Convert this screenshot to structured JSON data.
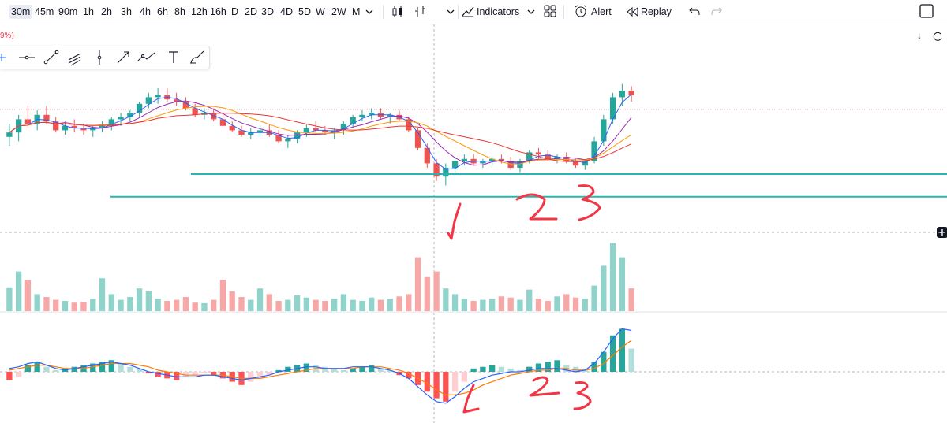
{
  "toolbar": {
    "timeframes": [
      "30m",
      "45m",
      "90m",
      "1h",
      "2h",
      "3h",
      "4h",
      "6h",
      "8h",
      "12h",
      "16h",
      "D",
      "2D",
      "3D",
      "4D",
      "5D",
      "W",
      "2W",
      "M"
    ],
    "selected_timeframe": "30m",
    "indicators_label": "Indicators",
    "alert_label": "Alert",
    "replay_label": "Replay"
  },
  "price_pane": {
    "change_fragment": "9%)"
  },
  "annotations": [
    "1",
    "2",
    "3",
    "1",
    "2",
    "3"
  ],
  "colors": {
    "up": "#26a69a",
    "down": "#ef5350",
    "up_vol": "#8fd3cb",
    "down_vol": "#f6a7a6",
    "support": "#26b5b0",
    "ma1": "#2962ff",
    "ma2": "#9c27b0",
    "ma3": "#ff9800",
    "ma4": "#e53935",
    "macd": "#2962ff",
    "signal": "#ff7a00",
    "hand": "#f23645"
  },
  "chart_data": {
    "type": "candlestick",
    "series_price": [
      [
        24,
        30,
        20,
        26
      ],
      [
        26,
        34,
        22,
        32
      ],
      [
        32,
        38,
        28,
        30
      ],
      [
        30,
        36,
        27,
        34
      ],
      [
        34,
        38,
        30,
        31
      ],
      [
        31,
        33,
        26,
        27
      ],
      [
        27,
        31,
        25,
        29
      ],
      [
        29,
        32,
        26,
        28
      ],
      [
        28,
        30,
        25,
        27
      ],
      [
        27,
        29,
        24,
        28
      ],
      [
        28,
        31,
        26,
        29
      ],
      [
        29,
        33,
        27,
        32
      ],
      [
        32,
        35,
        29,
        33
      ],
      [
        33,
        36,
        31,
        35
      ],
      [
        35,
        40,
        33,
        39
      ],
      [
        39,
        44,
        37,
        42
      ],
      [
        42,
        46,
        39,
        43
      ],
      [
        43,
        46,
        40,
        41
      ],
      [
        41,
        44,
        38,
        40
      ],
      [
        40,
        42,
        36,
        37
      ],
      [
        37,
        39,
        33,
        34
      ],
      [
        34,
        37,
        32,
        35
      ],
      [
        35,
        37,
        31,
        32
      ],
      [
        32,
        34,
        28,
        29
      ],
      [
        29,
        31,
        26,
        27
      ],
      [
        27,
        29,
        24,
        25
      ],
      [
        25,
        28,
        23,
        26
      ],
      [
        26,
        29,
        24,
        27
      ],
      [
        27,
        30,
        24,
        25
      ],
      [
        25,
        27,
        21,
        22
      ],
      [
        22,
        25,
        19,
        23
      ],
      [
        23,
        27,
        21,
        26
      ],
      [
        26,
        30,
        24,
        28
      ],
      [
        28,
        31,
        26,
        27
      ],
      [
        27,
        29,
        25,
        26
      ],
      [
        26,
        28,
        23,
        27
      ],
      [
        27,
        31,
        25,
        30
      ],
      [
        30,
        34,
        28,
        33
      ],
      [
        33,
        36,
        31,
        34
      ],
      [
        34,
        37,
        32,
        35
      ],
      [
        35,
        37,
        32,
        33
      ],
      [
        33,
        35,
        30,
        34
      ],
      [
        34,
        36,
        31,
        32
      ],
      [
        32,
        33,
        26,
        27
      ],
      [
        27,
        28,
        18,
        19
      ],
      [
        19,
        21,
        10,
        12
      ],
      [
        12,
        14,
        4,
        6
      ],
      [
        6,
        12,
        2,
        10
      ],
      [
        10,
        15,
        8,
        13
      ],
      [
        13,
        16,
        11,
        14
      ],
      [
        14,
        16,
        11,
        12
      ],
      [
        12,
        14,
        10,
        13
      ],
      [
        13,
        15,
        11,
        14
      ],
      [
        14,
        16,
        12,
        13
      ],
      [
        13,
        15,
        9,
        10
      ],
      [
        10,
        14,
        8,
        13
      ],
      [
        13,
        18,
        12,
        17
      ],
      [
        17,
        19,
        14,
        16
      ],
      [
        16,
        18,
        13,
        14
      ],
      [
        14,
        16,
        12,
        15
      ],
      [
        15,
        17,
        12,
        13
      ],
      [
        13,
        14,
        10,
        11
      ],
      [
        11,
        14,
        9,
        13
      ],
      [
        13,
        24,
        12,
        22
      ],
      [
        22,
        34,
        20,
        32
      ],
      [
        32,
        44,
        30,
        42
      ],
      [
        42,
        48,
        38,
        45
      ],
      [
        45,
        47,
        40,
        43
      ]
    ],
    "volume": [
      42,
      70,
      55,
      30,
      25,
      20,
      18,
      15,
      16,
      22,
      58,
      30,
      20,
      25,
      40,
      35,
      22,
      18,
      20,
      25,
      15,
      14,
      20,
      55,
      35,
      25,
      20,
      40,
      30,
      18,
      20,
      28,
      24,
      20,
      18,
      22,
      30,
      20,
      18,
      24,
      20,
      22,
      26,
      30,
      95,
      60,
      70,
      40,
      30,
      22,
      18,
      20,
      22,
      26,
      24,
      20,
      38,
      22,
      18,
      26,
      30,
      24,
      22,
      45,
      80,
      120,
      95,
      40
    ],
    "macd_hist": [
      -5,
      -3,
      4,
      6,
      3,
      1,
      2,
      3,
      4,
      5,
      6,
      7,
      5,
      3,
      2,
      -1,
      -3,
      -4,
      -5,
      -3,
      -2,
      -1,
      -2,
      -4,
      -6,
      -8,
      -6,
      -4,
      -2,
      1,
      3,
      4,
      5,
      4,
      3,
      2,
      1,
      2,
      3,
      4,
      2,
      1,
      -2,
      -4,
      -8,
      -12,
      -16,
      -18,
      -12,
      -6,
      2,
      3,
      4,
      3,
      2,
      1,
      3,
      5,
      6,
      7,
      4,
      3,
      1,
      6,
      12,
      22,
      26,
      14
    ],
    "macd_line": [
      2,
      3,
      5,
      6,
      4,
      2,
      1,
      2,
      3,
      4,
      5,
      6,
      5,
      4,
      2,
      0,
      -1,
      -2,
      -3,
      -3,
      -3,
      -2,
      -2,
      -3,
      -4,
      -5,
      -4,
      -3,
      -2,
      0,
      1,
      2,
      3,
      3,
      2,
      2,
      2,
      3,
      3,
      3,
      2,
      1,
      -1,
      -4,
      -9,
      -14,
      -18,
      -19,
      -15,
      -10,
      -6,
      -4,
      -2,
      -1,
      0,
      0,
      1,
      2,
      2,
      2,
      1,
      0,
      1,
      5,
      12,
      20,
      26,
      25
    ],
    "signal_line": [
      1,
      2,
      3,
      4,
      4,
      3,
      2,
      2,
      2,
      3,
      4,
      5,
      5,
      5,
      4,
      3,
      1,
      0,
      -1,
      -2,
      -2,
      -2,
      -2,
      -2,
      -3,
      -4,
      -4,
      -4,
      -3,
      -2,
      -1,
      0,
      1,
      2,
      2,
      2,
      2,
      2,
      3,
      3,
      3,
      2,
      1,
      -1,
      -4,
      -7,
      -11,
      -14,
      -14,
      -13,
      -11,
      -8,
      -6,
      -4,
      -2,
      -1,
      0,
      1,
      1,
      2,
      2,
      1,
      1,
      2,
      5,
      10,
      15,
      19
    ],
    "support_levels": [
      10,
      4
    ]
  }
}
